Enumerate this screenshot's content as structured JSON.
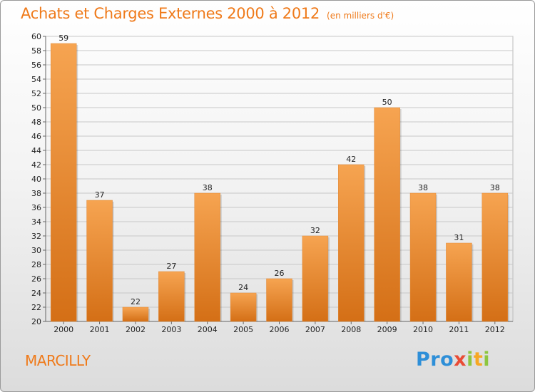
{
  "header": {
    "title": "Achats et Charges Externes 2000 à 2012",
    "subtitle": "(en milliers d'€)"
  },
  "footer": {
    "commune": "MARCILLY",
    "logo": {
      "p1": "Pro",
      "p2": "x",
      "p3": "i",
      "p4": "t",
      "p5": "i"
    }
  },
  "colors": {
    "bar_light": "#f6a451",
    "bar_dark": "#d46f16",
    "accent": "#ef7a1a"
  },
  "chart_data": {
    "type": "bar",
    "categories": [
      "2000",
      "2001",
      "2002",
      "2003",
      "2004",
      "2005",
      "2006",
      "2007",
      "2008",
      "2009",
      "2010",
      "2011",
      "2012"
    ],
    "values": [
      59,
      37,
      22,
      27,
      38,
      24,
      26,
      32,
      42,
      50,
      38,
      31,
      38
    ],
    "title": "Achats et Charges Externes 2000 à 2012",
    "ylim": [
      20,
      60
    ],
    "yticks": [
      20,
      22,
      24,
      26,
      28,
      30,
      32,
      34,
      36,
      38,
      40,
      42,
      44,
      46,
      48,
      50,
      52,
      54,
      56,
      58,
      60
    ],
    "grid": true,
    "data_labels": true
  }
}
